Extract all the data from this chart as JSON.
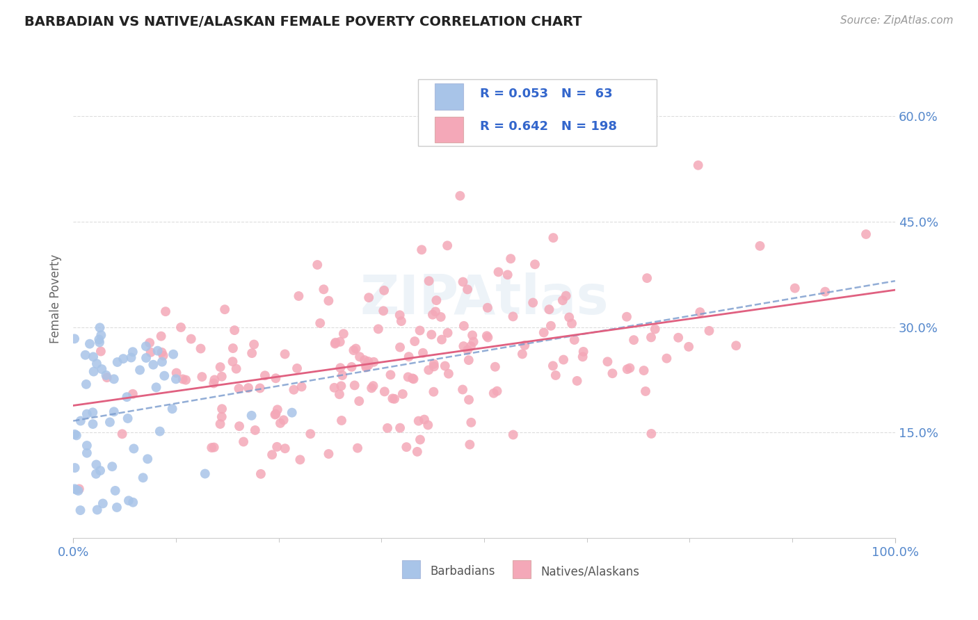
{
  "title": "BARBADIAN VS NATIVE/ALASKAN FEMALE POVERTY CORRELATION CHART",
  "source_text": "Source: ZipAtlas.com",
  "ylabel": "Female Poverty",
  "y_tick_labels": [
    "15.0%",
    "30.0%",
    "45.0%",
    "60.0%"
  ],
  "y_tick_values": [
    0.15,
    0.3,
    0.45,
    0.6
  ],
  "barbadian_color": "#a8c4e8",
  "native_color": "#f4a8b8",
  "barbadian_line_color": "#7799cc",
  "native_line_color": "#e06080",
  "barbadian_R": 0.053,
  "barbadian_N": 63,
  "native_R": 0.642,
  "native_N": 198,
  "watermark": "ZIPAtlas",
  "background_color": "#ffffff",
  "grid_color": "#dddddd",
  "title_color": "#222222",
  "axis_label_color": "#5588cc",
  "legend_text_color": "#3366cc",
  "source_color": "#999999"
}
